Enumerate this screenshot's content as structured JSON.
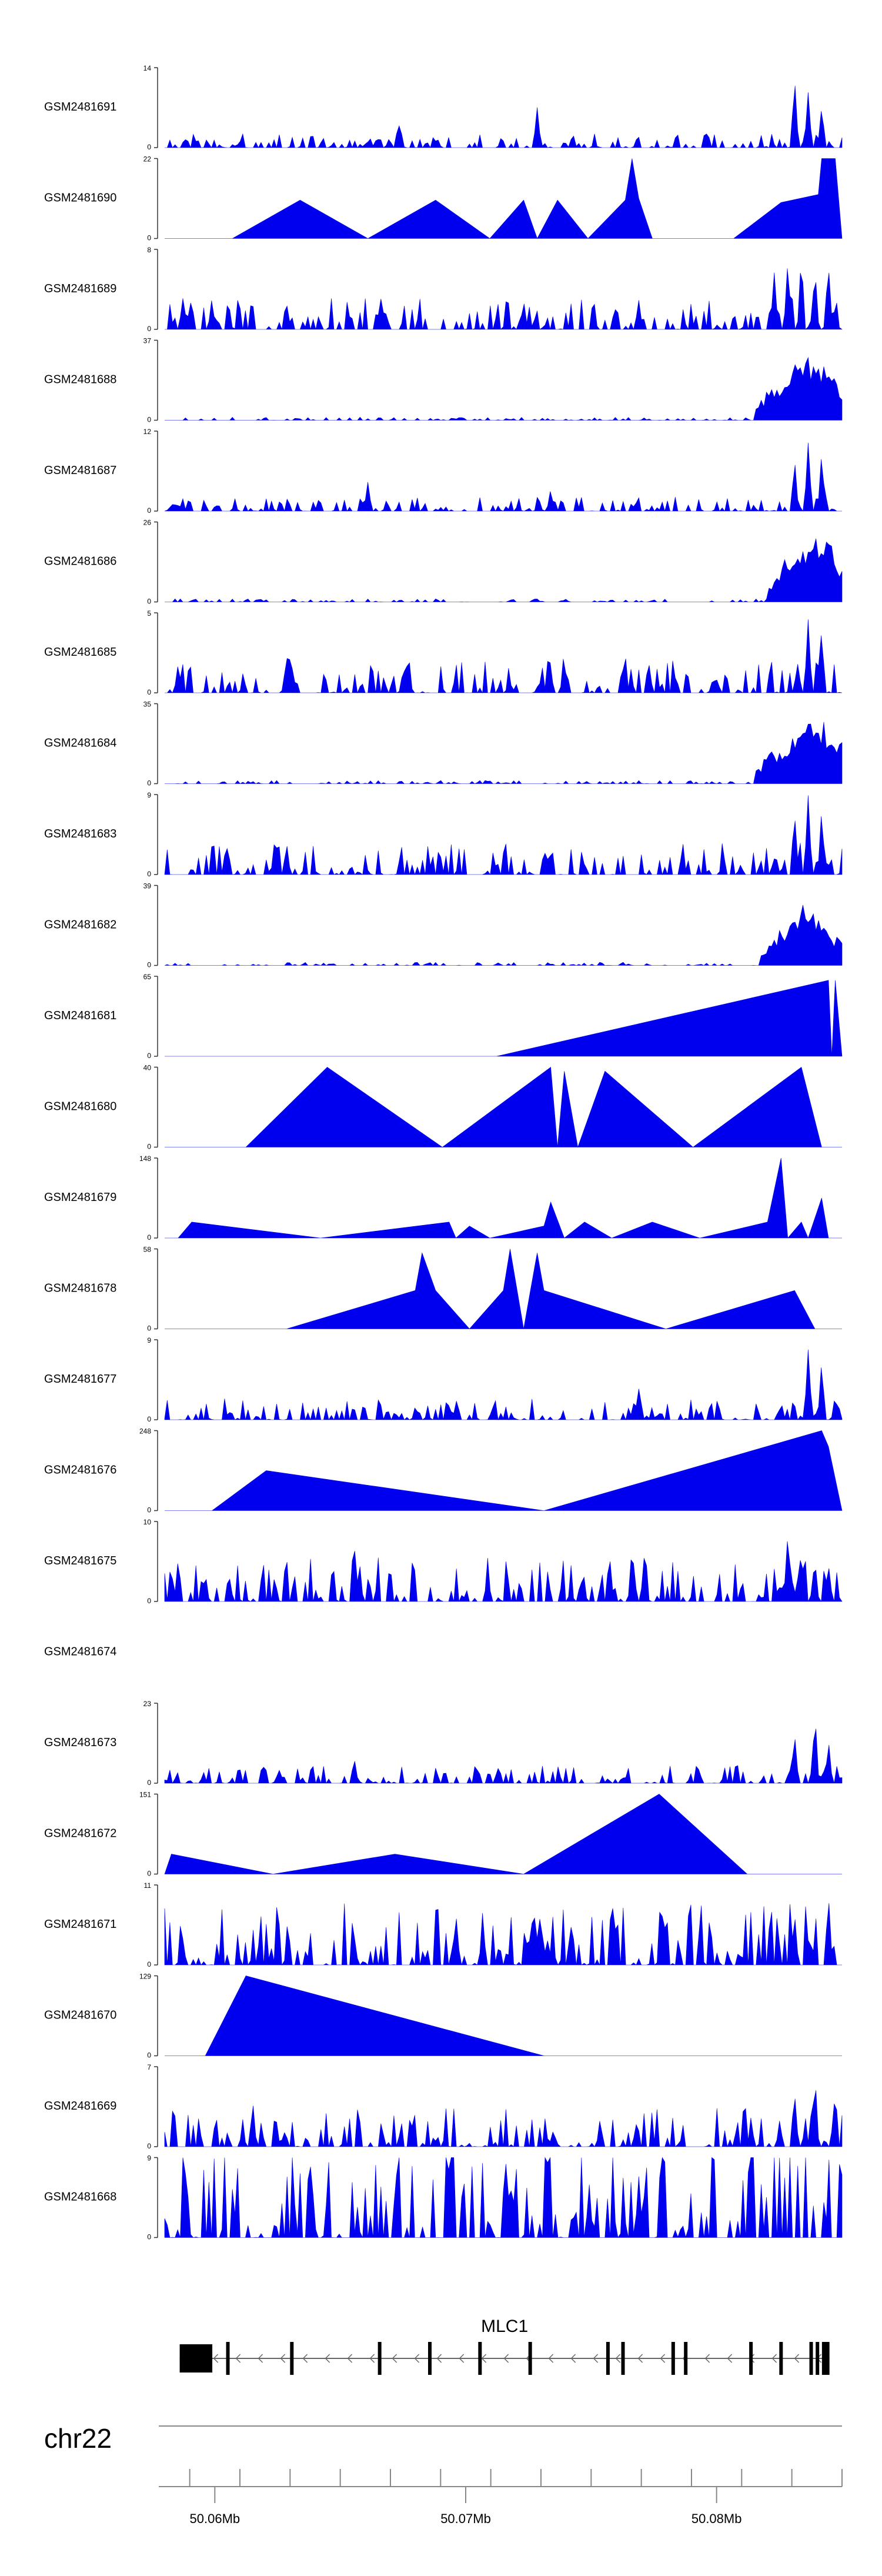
{
  "chart_data": {
    "type": "area",
    "title": "",
    "track_type": "coverage",
    "fill_color": "#0000EE",
    "chromosome": "chr22",
    "x_range_bp": [
      50058000,
      50085000
    ],
    "x_ticks": [
      {
        "pos": 50060000,
        "label": "50.06Mb"
      },
      {
        "pos": 50070000,
        "label": "50.07Mb"
      },
      {
        "pos": 50080000,
        "label": "50.08Mb"
      }
    ],
    "tracks": [
      {
        "name": "GSM2481691",
        "ymax": 14,
        "ylabel_top": "14",
        "ylabel_bottom": "0",
        "profile": "dense",
        "baseline": 0.08,
        "peaks": [
          [
            0.55,
            0.52
          ],
          [
            0.93,
            1.0
          ],
          [
            0.95,
            0.75
          ],
          [
            0.97,
            0.55
          ],
          [
            0.345,
            0.35
          ]
        ]
      },
      {
        "name": "GSM2481690",
        "ymax": 22,
        "ylabel_top": "22",
        "ylabel_bottom": "0",
        "profile": "pts",
        "pts": [
          [
            0,
            0
          ],
          [
            0.1,
            0
          ],
          [
            0.2,
            0.48
          ],
          [
            0.3,
            0
          ],
          [
            0.4,
            0.48
          ],
          [
            0.48,
            0
          ],
          [
            0.53,
            0.48
          ],
          [
            0.55,
            0
          ],
          [
            0.58,
            0.48
          ],
          [
            0.625,
            0
          ],
          [
            0.68,
            0.48
          ],
          [
            0.69,
            1.0
          ],
          [
            0.7,
            0.5
          ],
          [
            0.72,
            0
          ],
          [
            0.84,
            0
          ],
          [
            0.91,
            0.45
          ],
          [
            0.965,
            0.55
          ],
          [
            0.97,
            1.0
          ],
          [
            0.99,
            1.0
          ],
          [
            1.0,
            0
          ]
        ]
      },
      {
        "name": "GSM2481689",
        "ymax": 8,
        "ylabel_top": "8",
        "ylabel_bottom": "0",
        "profile": "dense",
        "baseline": 0.18,
        "peaks": [
          [
            0.32,
            0.5
          ],
          [
            0.53,
            0.4
          ],
          [
            0.7,
            0.38
          ],
          [
            0.9,
            0.75
          ],
          [
            0.92,
            0.9
          ],
          [
            0.94,
            1.0
          ],
          [
            0.96,
            0.85
          ],
          [
            0.98,
            0.95
          ]
        ]
      },
      {
        "name": "GSM2481688",
        "ymax": 37,
        "ylabel_top": "37",
        "ylabel_bottom": "0",
        "profile": "ramp",
        "baseline": 0.04,
        "ramp": [
          [
            0.9,
            0.5
          ],
          [
            0.93,
            0.8
          ],
          [
            0.95,
            0.95
          ],
          [
            0.97,
            0.85
          ],
          [
            0.98,
            0.7
          ]
        ]
      },
      {
        "name": "GSM2481687",
        "ymax": 12,
        "ylabel_top": "12",
        "ylabel_bottom": "0",
        "profile": "dense",
        "baseline": 0.08,
        "peaks": [
          [
            0.3,
            0.4
          ],
          [
            0.57,
            0.3
          ],
          [
            0.93,
            0.7
          ],
          [
            0.95,
            0.95
          ],
          [
            0.97,
            0.75
          ]
        ]
      },
      {
        "name": "GSM2481686",
        "ymax": 26,
        "ylabel_top": "26",
        "ylabel_bottom": "0",
        "profile": "ramp",
        "baseline": 0.04,
        "ramp": [
          [
            0.92,
            0.6
          ],
          [
            0.94,
            0.8
          ],
          [
            0.96,
            0.95
          ],
          [
            0.98,
            0.9
          ]
        ]
      },
      {
        "name": "GSM2481685",
        "ymax": 5,
        "ylabel_top": "5",
        "ylabel_bottom": "0",
        "profile": "dense",
        "baseline": 0.2,
        "peaks": [
          [
            0.02,
            0.4
          ],
          [
            0.18,
            0.5
          ],
          [
            0.36,
            0.55
          ],
          [
            0.95,
            1.0
          ],
          [
            0.97,
            0.85
          ]
        ]
      },
      {
        "name": "GSM2481684",
        "ymax": 35,
        "ylabel_top": "35",
        "ylabel_bottom": "0",
        "profile": "ramp",
        "baseline": 0.04,
        "ramp": [
          [
            0.9,
            0.5
          ],
          [
            0.93,
            0.7
          ],
          [
            0.95,
            0.95
          ],
          [
            0.97,
            0.85
          ],
          [
            0.99,
            0.7
          ]
        ]
      },
      {
        "name": "GSM2481683",
        "ymax": 9,
        "ylabel_top": "9",
        "ylabel_bottom": "0",
        "profile": "dense",
        "baseline": 0.18,
        "peaks": [
          [
            0.18,
            0.45
          ],
          [
            0.93,
            0.9
          ],
          [
            0.95,
            1.0
          ],
          [
            0.97,
            0.85
          ]
        ]
      },
      {
        "name": "GSM2481682",
        "ymax": 39,
        "ylabel_top": "39",
        "ylabel_bottom": "0",
        "profile": "ramp",
        "baseline": 0.04,
        "ramp": [
          [
            0.91,
            0.5
          ],
          [
            0.93,
            0.6
          ],
          [
            0.95,
            0.95
          ],
          [
            0.97,
            0.7
          ],
          [
            0.99,
            0.4
          ]
        ]
      },
      {
        "name": "GSM2481681",
        "ymax": 65,
        "ylabel_top": "65",
        "ylabel_bottom": "0",
        "profile": "pts",
        "pts": [
          [
            0,
            0
          ],
          [
            0.49,
            0
          ],
          [
            0.98,
            0.95
          ],
          [
            0.985,
            0
          ],
          [
            0.99,
            0.95
          ],
          [
            1.0,
            0
          ]
        ]
      },
      {
        "name": "GSM2481680",
        "ymax": 40,
        "ylabel_top": "40",
        "ylabel_bottom": "0",
        "profile": "pts",
        "pts": [
          [
            0,
            0
          ],
          [
            0.12,
            0
          ],
          [
            0.24,
            1.0
          ],
          [
            0.41,
            0
          ],
          [
            0.57,
            1.0
          ],
          [
            0.58,
            0
          ],
          [
            0.59,
            0.95
          ],
          [
            0.61,
            0
          ],
          [
            0.65,
            0.95
          ],
          [
            0.78,
            0
          ],
          [
            0.94,
            1.0
          ],
          [
            0.97,
            0
          ],
          [
            1.0,
            0
          ]
        ]
      },
      {
        "name": "GSM2481679",
        "ymax": 148,
        "ylabel_top": "148",
        "ylabel_bottom": "0",
        "profile": "pts",
        "pts": [
          [
            0,
            0
          ],
          [
            0.02,
            0
          ],
          [
            0.04,
            0.2
          ],
          [
            0.23,
            0
          ],
          [
            0.42,
            0.2
          ],
          [
            0.43,
            0
          ],
          [
            0.45,
            0.15
          ],
          [
            0.48,
            0
          ],
          [
            0.56,
            0.15
          ],
          [
            0.57,
            0.45
          ],
          [
            0.59,
            0
          ],
          [
            0.62,
            0.2
          ],
          [
            0.66,
            0
          ],
          [
            0.72,
            0.2
          ],
          [
            0.79,
            0
          ],
          [
            0.89,
            0.2
          ],
          [
            0.91,
            1.0
          ],
          [
            0.92,
            0
          ],
          [
            0.94,
            0.2
          ],
          [
            0.95,
            0
          ],
          [
            0.97,
            0.5
          ],
          [
            0.98,
            0
          ],
          [
            1.0,
            0
          ]
        ]
      },
      {
        "name": "GSM2481678",
        "ymax": 58,
        "ylabel_top": "58",
        "ylabel_bottom": "0",
        "profile": "pts",
        "pts": [
          [
            0,
            0
          ],
          [
            0.18,
            0
          ],
          [
            0.37,
            0.48
          ],
          [
            0.38,
            0.95
          ],
          [
            0.4,
            0.48
          ],
          [
            0.45,
            0
          ],
          [
            0.5,
            0.48
          ],
          [
            0.51,
            1.0
          ],
          [
            0.53,
            0
          ],
          [
            0.54,
            0.48
          ],
          [
            0.55,
            0.95
          ],
          [
            0.56,
            0.48
          ],
          [
            0.74,
            0
          ],
          [
            0.93,
            0.48
          ],
          [
            0.96,
            0
          ],
          [
            1.0,
            0
          ]
        ]
      },
      {
        "name": "GSM2481677",
        "ymax": 9,
        "ylabel_top": "9",
        "ylabel_bottom": "0",
        "profile": "dense",
        "baseline": 0.12,
        "peaks": [
          [
            0.7,
            0.4
          ],
          [
            0.95,
            1.0
          ],
          [
            0.97,
            0.8
          ],
          [
            0.99,
            0.35
          ]
        ]
      },
      {
        "name": "GSM2481676",
        "ymax": 248,
        "ylabel_top": "248",
        "ylabel_bottom": "0",
        "profile": "pts",
        "pts": [
          [
            0,
            0
          ],
          [
            0.07,
            0
          ],
          [
            0.15,
            0.5
          ],
          [
            0.56,
            0
          ],
          [
            0.97,
            1.0
          ],
          [
            0.98,
            0.8
          ],
          [
            1.0,
            0
          ]
        ]
      },
      {
        "name": "GSM2481675",
        "ymax": 10,
        "ylabel_top": "10",
        "ylabel_bottom": "0",
        "profile": "dense",
        "baseline": 0.25,
        "peaks": [
          [
            0.02,
            0.6
          ],
          [
            0.06,
            0.4
          ],
          [
            0.28,
            0.75
          ],
          [
            0.69,
            0.8
          ],
          [
            0.92,
            1.0
          ],
          [
            0.94,
            0.7
          ],
          [
            0.96,
            0.6
          ],
          [
            0.98,
            0.55
          ]
        ]
      },
      {
        "name": "GSM2481674",
        "ymax": null,
        "ylabel_top": "",
        "ylabel_bottom": "",
        "profile": "empty"
      },
      {
        "name": "GSM2481673",
        "ymax": 23,
        "ylabel_top": "23",
        "ylabel_bottom": "0",
        "profile": "dense",
        "baseline": 0.1,
        "peaks": [
          [
            0.28,
            0.35
          ],
          [
            0.93,
            0.7
          ],
          [
            0.96,
            1.0
          ],
          [
            0.98,
            0.55
          ]
        ]
      },
      {
        "name": "GSM2481672",
        "ymax": 151,
        "ylabel_top": "151",
        "ylabel_bottom": "0",
        "profile": "pts",
        "pts": [
          [
            0,
            0
          ],
          [
            0.01,
            0.25
          ],
          [
            0.16,
            0
          ],
          [
            0.34,
            0.25
          ],
          [
            0.53,
            0
          ],
          [
            0.73,
            1.0
          ],
          [
            0.86,
            0
          ],
          [
            1.0,
            0
          ]
        ]
      },
      {
        "name": "GSM2481671",
        "ymax": 11,
        "ylabel_top": "11",
        "ylabel_bottom": "0",
        "profile": "dense",
        "baseline": 0.35,
        "peaks": [
          [
            0.14,
            0.35
          ],
          [
            0.43,
            0.7
          ],
          [
            0.66,
            1.0
          ],
          [
            0.93,
            0.7
          ],
          [
            0.98,
            0.95
          ]
        ]
      },
      {
        "name": "GSM2481670",
        "ymax": 129,
        "ylabel_top": "129",
        "ylabel_bottom": "0",
        "profile": "pts",
        "pts": [
          [
            0,
            0
          ],
          [
            0.06,
            0
          ],
          [
            0.12,
            1.0
          ],
          [
            0.56,
            0
          ],
          [
            1.0,
            0
          ]
        ]
      },
      {
        "name": "GSM2481669",
        "ymax": 7,
        "ylabel_top": "7",
        "ylabel_bottom": "0",
        "profile": "dense",
        "baseline": 0.22,
        "peaks": [
          [
            0.13,
            0.6
          ],
          [
            0.93,
            0.8
          ],
          [
            0.96,
            1.0
          ],
          [
            0.99,
            0.75
          ]
        ]
      },
      {
        "name": "GSM2481668",
        "ymax": 9,
        "ylabel_top": "9",
        "ylabel_bottom": "0",
        "profile": "dense",
        "baseline": 0.6,
        "peaks": [
          [
            0.42,
            1.0
          ],
          [
            0.51,
            0.9
          ],
          [
            0.7,
            0.85
          ]
        ]
      }
    ],
    "gene": {
      "name": "MLC1",
      "strand": "-",
      "exons": [
        {
          "start": 50058600,
          "end": 50059900
        },
        {
          "start": 50060450,
          "end": 50060580
        },
        {
          "start": 50063000,
          "end": 50063080
        },
        {
          "start": 50066500,
          "end": 50066580
        },
        {
          "start": 50068500,
          "end": 50068580
        },
        {
          "start": 50070500,
          "end": 50070560
        },
        {
          "start": 50072500,
          "end": 50072580
        },
        {
          "start": 50075600,
          "end": 50075680
        },
        {
          "start": 50076200,
          "end": 50076280
        },
        {
          "start": 50078200,
          "end": 50078280
        },
        {
          "start": 50078700,
          "end": 50078780
        },
        {
          "start": 50081300,
          "end": 50081380
        },
        {
          "start": 50082500,
          "end": 50082580
        },
        {
          "start": 50083700,
          "end": 50083780
        },
        {
          "start": 50083950,
          "end": 50084050
        },
        {
          "start": 50084200,
          "end": 50084500
        }
      ]
    }
  }
}
